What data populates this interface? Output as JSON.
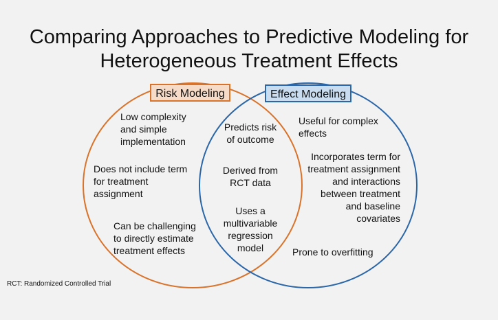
{
  "title": {
    "line1": "Comparing Approaches to Predictive Modeling for",
    "line2": "Heterogeneous Treatment Effects"
  },
  "colors": {
    "risk": "#d9732a",
    "risk_fill": "#f6dcc8",
    "effect": "#2a66a8",
    "effect_fill": "#c9dcf0",
    "background": "#f2f2f2"
  },
  "risk": {
    "label": "Risk Modeling",
    "items": [
      "Low complexity\nand simple\nimplementation",
      "Does not include term\nfor treatment\nassignment",
      "Can be challenging\nto directly estimate\ntreatment effects"
    ]
  },
  "effect": {
    "label": "Effect Modeling",
    "items": [
      "Useful for complex\neffects",
      "Incorporates term for\ntreatment assignment\nand interactions\nbetween treatment\nand baseline\ncovariates",
      "Prone to overfitting"
    ]
  },
  "shared": {
    "items": [
      "Predicts risk\nof outcome",
      "Derived from\nRCT data",
      "Uses a\nmultivariable\nregression\nmodel"
    ]
  },
  "footnote": "RCT: Randomized Controlled Trial"
}
